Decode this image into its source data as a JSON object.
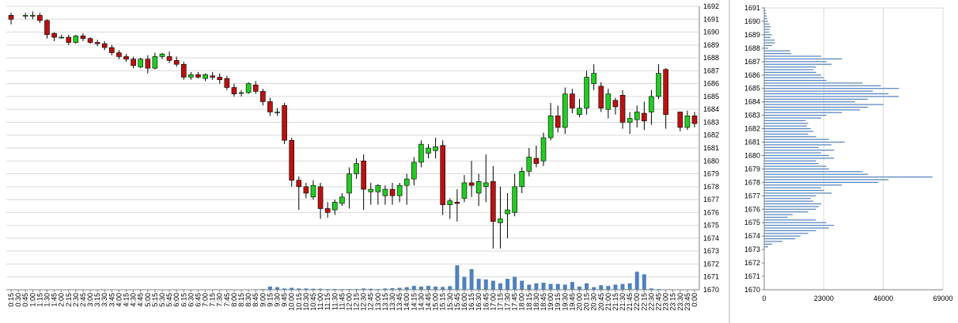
{
  "chart_data": [
    {
      "type": "candlestick",
      "ylim": [
        1670,
        1692
      ],
      "y_ticks": [
        1670,
        1671,
        1672,
        1673,
        1674,
        1675,
        1676,
        1677,
        1678,
        1679,
        1680,
        1681,
        1682,
        1683,
        1684,
        1685,
        1686,
        1687,
        1688,
        1689,
        1690,
        1691,
        1692
      ],
      "x_tick_labels": [
        "0:15",
        "0:30",
        "0:45",
        "1:00",
        "1:15",
        "1:30",
        "1:45",
        "2:00",
        "2:15",
        "2:30",
        "2:45",
        "3:00",
        "3:15",
        "3:30",
        "3:45",
        "4:00",
        "4:15",
        "4:30",
        "4:45",
        "5:00",
        "5:15",
        "5:30",
        "5:45",
        "6:00",
        "6:15",
        "6:30",
        "6:45",
        "7:00",
        "7:15",
        "7:30",
        "7:45",
        "8:00",
        "8:15",
        "8:30",
        "8:45",
        "9:00",
        "9:15",
        "9:30",
        "9:45",
        "10:00",
        "10:15",
        "10:30",
        "10:45",
        "11:00",
        "11:15",
        "11:30",
        "11:45",
        "12:00",
        "12:15",
        "12:30",
        "12:45",
        "13:00",
        "13:15",
        "13:30",
        "13:45",
        "14:00",
        "14:15",
        "14:30",
        "14:45",
        "15:00",
        "15:15",
        "15:30",
        "15:45",
        "16:00",
        "16:15",
        "16:30",
        "16:45",
        "17:00",
        "17:15",
        "17:30",
        "17:45",
        "18:00",
        "18:15",
        "18:30",
        "18:45",
        "19:00",
        "19:15",
        "19:30",
        "19:45",
        "20:00",
        "20:15",
        "20:30",
        "20:45",
        "21:00",
        "21:15",
        "21:30",
        "21:45",
        "22:00",
        "22:15",
        "22:30",
        "22:45",
        "23:00",
        "23:15",
        "23:30",
        "23:45",
        "0:00"
      ],
      "colors": {
        "up": "#22cc22",
        "down": "#bb1111",
        "volume": "#4f81bd"
      },
      "candles": [
        [
          1691.3,
          1691.5,
          1690.6,
          1691.0
        ],
        null,
        [
          1691.3,
          1691.5,
          1691.0,
          1691.3
        ],
        [
          1691.3,
          1691.6,
          1691.0,
          1691.3
        ],
        [
          1691.3,
          1691.5,
          1690.7,
          1690.9
        ],
        [
          1690.9,
          1691.0,
          1689.5,
          1689.8
        ],
        [
          1689.9,
          1690.0,
          1689.3,
          1689.6
        ],
        [
          1689.6,
          1689.8,
          1689.5,
          1689.6
        ],
        [
          1689.6,
          1689.8,
          1689.0,
          1689.2
        ],
        [
          1689.2,
          1689.8,
          1689.1,
          1689.7
        ],
        [
          1689.7,
          1689.9,
          1689.3,
          1689.5
        ],
        [
          1689.5,
          1689.6,
          1689.1,
          1689.2
        ],
        [
          1689.2,
          1689.4,
          1688.9,
          1689.1
        ],
        [
          1689.1,
          1689.3,
          1688.6,
          1688.8
        ],
        [
          1688.8,
          1689.0,
          1688.2,
          1688.4
        ],
        [
          1688.4,
          1688.6,
          1687.9,
          1688.1
        ],
        [
          1688.1,
          1688.3,
          1687.7,
          1687.9
        ],
        [
          1687.9,
          1688.1,
          1687.2,
          1687.4
        ],
        [
          1687.3,
          1688.0,
          1687.2,
          1687.9
        ],
        [
          1687.9,
          1688.2,
          1686.8,
          1687.2
        ],
        [
          1687.2,
          1688.4,
          1687.1,
          1688.1
        ],
        [
          1688.1,
          1688.4,
          1687.9,
          1688.3
        ],
        [
          1688.1,
          1688.5,
          1687.6,
          1687.8
        ],
        [
          1687.8,
          1688.1,
          1687.3,
          1687.5
        ],
        [
          1687.5,
          1687.7,
          1686.3,
          1686.5
        ],
        [
          1686.5,
          1686.9,
          1686.3,
          1686.7
        ],
        [
          1686.7,
          1686.9,
          1686.4,
          1686.5
        ],
        [
          1686.4,
          1686.8,
          1686.2,
          1686.7
        ],
        [
          1686.6,
          1686.9,
          1686.3,
          1686.5
        ],
        [
          1686.5,
          1686.8,
          1686.0,
          1686.3
        ],
        [
          1686.4,
          1686.6,
          1685.5,
          1685.7
        ],
        [
          1685.7,
          1686.0,
          1685.0,
          1685.2
        ],
        [
          1685.3,
          1685.5,
          1685.0,
          1685.3
        ],
        [
          1685.3,
          1686.1,
          1685.2,
          1686.0
        ],
        [
          1685.9,
          1686.2,
          1685.2,
          1685.4
        ],
        [
          1685.4,
          1685.6,
          1684.3,
          1684.6
        ],
        [
          1684.6,
          1684.9,
          1683.5,
          1683.8
        ],
        [
          1683.8,
          1684.1,
          1683.5,
          1683.8
        ],
        [
          1684.3,
          1684.5,
          1681.3,
          1681.6
        ],
        [
          1681.6,
          1681.8,
          1678.0,
          1678.5
        ],
        [
          1678.5,
          1678.8,
          1676.2,
          1678.0
        ],
        [
          1678.0,
          1678.3,
          1677.1,
          1677.5
        ],
        [
          1677.2,
          1678.5,
          1677.0,
          1678.1
        ],
        [
          1678.0,
          1678.3,
          1675.5,
          1676.3
        ],
        [
          1676.3,
          1676.8,
          1675.6,
          1676.0
        ],
        [
          1676.2,
          1677.0,
          1675.8,
          1676.8
        ],
        [
          1676.7,
          1677.5,
          1676.5,
          1677.2
        ],
        [
          1677.5,
          1679.5,
          1676.3,
          1679.0
        ],
        [
          1679.0,
          1680.2,
          1678.6,
          1679.8
        ],
        [
          1680.0,
          1680.5,
          1676.2,
          1677.8
        ],
        [
          1677.6,
          1678.3,
          1676.6,
          1677.8
        ],
        [
          1677.6,
          1678.2,
          1676.6,
          1678.1
        ],
        [
          1677.3,
          1678.1,
          1676.6,
          1677.8
        ],
        [
          1677.8,
          1678.3,
          1676.6,
          1677.3
        ],
        [
          1677.3,
          1678.3,
          1676.8,
          1678.1
        ],
        [
          1678.1,
          1679.0,
          1676.6,
          1678.6
        ],
        [
          1678.6,
          1680.3,
          1678.1,
          1679.9
        ],
        [
          1679.9,
          1681.6,
          1679.5,
          1681.3
        ],
        [
          1680.6,
          1681.3,
          1680.2,
          1681.0
        ],
        [
          1680.8,
          1681.8,
          1680.2,
          1681.1
        ],
        [
          1681.2,
          1681.6,
          1675.8,
          1676.6
        ],
        [
          1676.6,
          1677.1,
          1675.5,
          1676.9
        ],
        [
          1676.8,
          1677.8,
          1675.3,
          1676.7
        ],
        [
          1677.1,
          1678.9,
          1676.8,
          1678.3
        ],
        [
          1678.3,
          1680.0,
          1677.2,
          1678.1
        ],
        [
          1677.5,
          1679.0,
          1676.5,
          1678.4
        ],
        [
          1678.0,
          1680.5,
          1676.8,
          1678.3
        ],
        [
          1678.4,
          1679.6,
          1673.2,
          1675.3
        ],
        [
          1675.2,
          1678.0,
          1673.2,
          1675.5
        ],
        [
          1675.9,
          1677.5,
          1674.0,
          1676.2
        ],
        [
          1676.0,
          1679.0,
          1675.7,
          1678.0
        ],
        [
          1678.0,
          1679.5,
          1677.5,
          1679.2
        ],
        [
          1679.2,
          1681.0,
          1678.8,
          1680.3
        ],
        [
          1680.2,
          1681.2,
          1679.5,
          1679.8
        ],
        [
          1680.0,
          1682.2,
          1679.6,
          1681.8
        ],
        [
          1681.8,
          1684.5,
          1681.6,
          1683.5
        ],
        [
          1683.5,
          1684.3,
          1682.2,
          1682.6
        ],
        [
          1682.6,
          1685.7,
          1682.1,
          1685.2
        ],
        [
          1685.2,
          1685.6,
          1683.7,
          1684.1
        ],
        [
          1683.6,
          1684.8,
          1683.4,
          1684.1
        ],
        [
          1684.1,
          1687.0,
          1683.6,
          1686.5
        ],
        [
          1686.0,
          1687.5,
          1685.5,
          1686.8
        ],
        [
          1685.8,
          1686.1,
          1683.8,
          1684.1
        ],
        [
          1684.0,
          1685.6,
          1683.3,
          1685.2
        ],
        [
          1684.7,
          1684.9,
          1683.6,
          1684.2
        ],
        [
          1685.1,
          1685.5,
          1682.5,
          1683.0
        ],
        [
          1683.0,
          1683.8,
          1682.1,
          1683.3
        ],
        [
          1683.2,
          1684.3,
          1682.6,
          1683.8
        ],
        [
          1683.7,
          1684.6,
          1682.4,
          1683.1
        ],
        [
          1683.8,
          1685.5,
          1682.8,
          1685.0
        ],
        [
          1685.0,
          1687.5,
          1684.8,
          1686.8
        ],
        [
          1687.1,
          1687.2,
          1682.5,
          1683.6
        ],
        null,
        [
          1683.8,
          1683.8,
          1682.3,
          1682.6
        ],
        [
          1682.6,
          1683.9,
          1682.4,
          1683.5
        ],
        [
          1683.5,
          1683.8,
          1682.6,
          1682.9
        ]
      ],
      "volume": [
        0,
        0,
        0,
        0,
        0,
        0,
        0,
        0,
        0,
        0,
        0,
        0,
        0,
        0,
        0,
        0,
        0,
        0,
        0,
        0,
        0,
        0,
        0,
        0,
        0,
        0,
        0,
        0,
        0,
        0,
        0,
        0,
        0,
        0,
        0,
        0.05,
        0.25,
        0.2,
        0.1,
        0.15,
        0.1,
        0.1,
        0.08,
        0.08,
        0.05,
        0.06,
        0.05,
        0.05,
        0.05,
        0.1,
        0.08,
        0.05,
        0.1,
        0.12,
        0.15,
        0.2,
        0.3,
        0.25,
        0.3,
        0.25,
        0.22,
        0.28,
        1.9,
        1.0,
        1.6,
        0.85,
        0.8,
        0.7,
        0.5,
        0.85,
        1.0,
        0.7,
        0.4,
        0.5,
        0.55,
        0.45,
        0.45,
        0.4,
        0.6,
        0.25,
        0.5,
        0.2,
        0.35,
        0.3,
        0.4,
        0.45,
        0.5,
        1.4,
        1.2,
        0.1,
        0.05,
        0,
        0,
        0,
        0,
        0
      ],
      "volume_scale_max": 2
    },
    {
      "type": "bar",
      "orientation": "horizontal",
      "ylim": [
        1670,
        1691
      ],
      "y_ticks": [
        1670,
        1671,
        1672,
        1673,
        1674,
        1675,
        1676,
        1677,
        1678,
        1679,
        1680,
        1681,
        1682,
        1683,
        1684,
        1685,
        1686,
        1687,
        1688,
        1689,
        1690,
        1691
      ],
      "xlim": [
        0,
        69000
      ],
      "x_tick_labels": [
        "0",
        "23000",
        "46000",
        "69000"
      ],
      "x_tick_values": [
        0,
        23000,
        46000,
        69000
      ],
      "bar_color": "#4f81bd",
      "levels": [
        1691.0,
        1690.8,
        1690.6,
        1690.4,
        1690.2,
        1690.0,
        1689.8,
        1689.6,
        1689.4,
        1689.2,
        1689.0,
        1688.8,
        1688.6,
        1688.4,
        1688.2,
        1688.0,
        1687.8,
        1687.6,
        1687.4,
        1687.2,
        1687.0,
        1686.8,
        1686.6,
        1686.4,
        1686.2,
        1686.0,
        1685.8,
        1685.6,
        1685.4,
        1685.2,
        1685.0,
        1684.8,
        1684.6,
        1684.4,
        1684.2,
        1684.0,
        1683.8,
        1683.6,
        1683.4,
        1683.2,
        1683.0,
        1682.8,
        1682.6,
        1682.4,
        1682.2,
        1682.0,
        1681.8,
        1681.6,
        1681.4,
        1681.2,
        1681.0,
        1680.8,
        1680.6,
        1680.4,
        1680.2,
        1680.0,
        1679.8,
        1679.6,
        1679.4,
        1679.2,
        1679.0,
        1678.8,
        1678.6,
        1678.4,
        1678.2,
        1678.0,
        1677.8,
        1677.6,
        1677.4,
        1677.2,
        1677.0,
        1676.8,
        1676.6,
        1676.4,
        1676.2,
        1676.0,
        1675.8,
        1675.6,
        1675.4,
        1675.2,
        1675.0,
        1674.8,
        1674.6,
        1674.4,
        1674.2,
        1674.0,
        1673.8,
        1673.6,
        1673.4,
        1673.2
      ],
      "values": [
        300,
        600,
        800,
        1000,
        1200,
        1500,
        2000,
        2500,
        2200,
        2000,
        3000,
        2500,
        4000,
        4200,
        3000,
        1500,
        10000,
        10500,
        22000,
        30000,
        24000,
        26000,
        20000,
        19000,
        20000,
        22000,
        23000,
        24000,
        38000,
        45000,
        52000,
        42000,
        48000,
        52000,
        40000,
        35000,
        46000,
        40000,
        37000,
        30000,
        24000,
        22000,
        16000,
        17000,
        16500,
        18000,
        19000,
        17000,
        20000,
        25000,
        31000,
        26000,
        21000,
        27000,
        22000,
        25000,
        27000,
        20000,
        21000,
        24000,
        25000,
        38000,
        40000,
        65000,
        48000,
        44000,
        30000,
        22000,
        23000,
        26000,
        20000,
        18000,
        19000,
        22000,
        21000,
        20000,
        17000,
        11000,
        9000,
        20000,
        24000,
        27000,
        25000,
        20000,
        17000,
        14000,
        12000,
        7000,
        3000,
        1500
      ]
    }
  ]
}
